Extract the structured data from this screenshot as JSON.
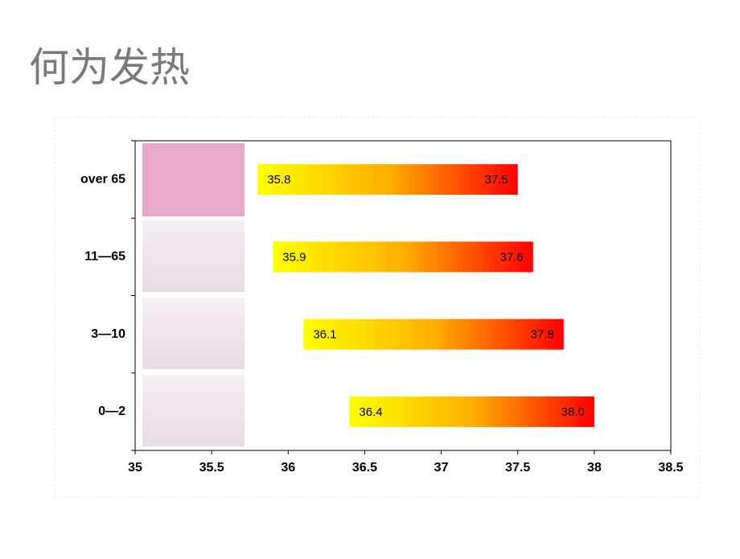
{
  "chart_data": {
    "type": "range-bar",
    "title": "何为发热",
    "categories": [
      "over 65",
      "11—65",
      "3—10",
      "0—2"
    ],
    "low": {
      "values": [
        35.8,
        35.9,
        36.1,
        36.4
      ]
    },
    "high": {
      "values": [
        37.5,
        37.6,
        37.8,
        38
      ],
      "value_labels": [
        "37.5",
        "37.6",
        "37.8",
        "38.0"
      ]
    },
    "gradient": [
      "#ffff00",
      "#ff0000"
    ],
    "xlim": [
      35,
      38.5
    ],
    "xticks": [
      35,
      35.5,
      36,
      36.5,
      37,
      37.5,
      38,
      38.5
    ]
  }
}
